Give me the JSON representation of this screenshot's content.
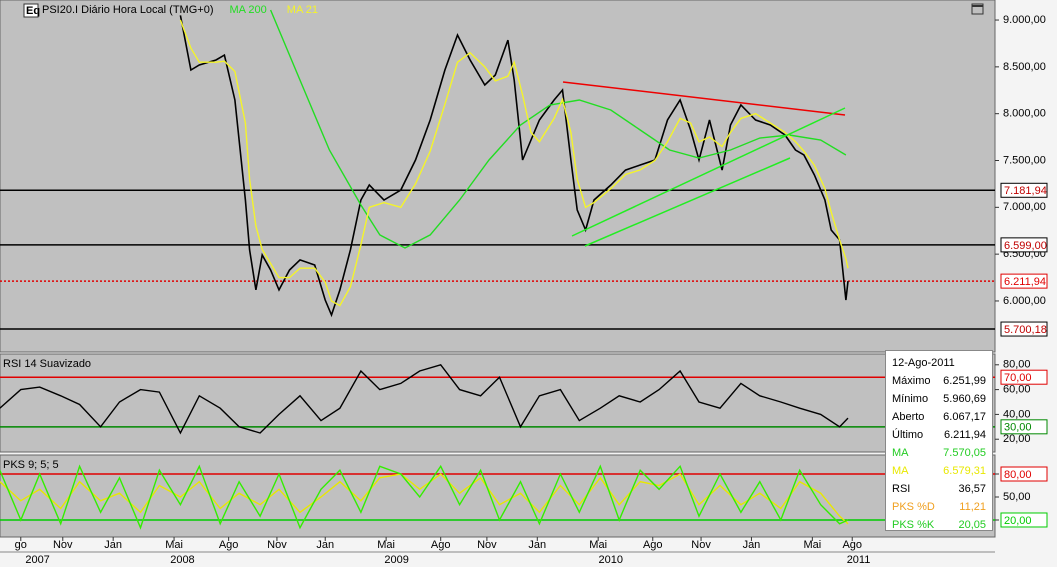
{
  "toolbar": {
    "icon": "Eq"
  },
  "chart_data": [
    {
      "type": "line",
      "title": "PSI20.I Diário Hora Local (TMG+0)",
      "xlim": [
        2007.471,
        2012.21
      ],
      "ylim": [
        5455,
        9214
      ],
      "yticks": [
        {
          "value": 9000,
          "label": "9.000,00"
        },
        {
          "value": 8500,
          "label": "8.500,00"
        },
        {
          "value": 8000,
          "label": "8.000,00"
        },
        {
          "value": 7500,
          "label": "7.500,00"
        },
        {
          "value": 7000,
          "label": "7.000,00"
        },
        {
          "value": 6500,
          "label": "6.500,00"
        },
        {
          "value": 6000,
          "label": "6.000,00"
        }
      ],
      "levels": [
        {
          "value": 7181.94,
          "label": "7.181,94",
          "color": "#000000",
          "style": "solid"
        },
        {
          "value": 6599.0,
          "label": "6.599,00",
          "color": "#000000",
          "style": "solid"
        },
        {
          "value": 6211.94,
          "label": "6.211,94",
          "color": "#e00000",
          "style": "dotted"
        },
        {
          "value": 5700.18,
          "label": "5.700,18",
          "color": "#000000",
          "style": "solid"
        }
      ],
      "x": [
        2008.33,
        2008.38,
        2008.42,
        2008.5,
        2008.54,
        2008.59,
        2008.64,
        2008.66,
        2008.69,
        2008.72,
        2008.76,
        2008.8,
        2008.85,
        2008.9,
        2008.97,
        2009.02,
        2009.05,
        2009.09,
        2009.14,
        2009.19,
        2009.23,
        2009.3,
        2009.38,
        2009.45,
        2009.52,
        2009.59,
        2009.65,
        2009.71,
        2009.78,
        2009.83,
        2009.89,
        2009.92,
        2009.96,
        2010.0,
        2010.04,
        2010.11,
        2010.15,
        2010.19,
        2010.22,
        2010.26,
        2010.3,
        2010.38,
        2010.45,
        2010.52,
        2010.59,
        2010.65,
        2010.71,
        2010.76,
        2010.8,
        2010.85,
        2010.91,
        2010.95,
        2011.0,
        2011.07,
        2011.14,
        2011.21,
        2011.26,
        2011.3,
        2011.35,
        2011.4,
        2011.43,
        2011.47,
        2011.5,
        2011.51
      ],
      "series": [
        {
          "color": "#000000",
          "values": [
            9050,
            8466,
            8520,
            8573,
            8626,
            8146,
            7078,
            6545,
            6118,
            6491,
            6331,
            6118,
            6331,
            6438,
            6384,
            6010,
            5850,
            6118,
            6545,
            7078,
            7238,
            7078,
            7185,
            7505,
            7932,
            8466,
            8840,
            8573,
            8306,
            8413,
            8786,
            8359,
            7505,
            7719,
            7932,
            8146,
            8253,
            7505,
            6972,
            6758,
            7078,
            7238,
            7398,
            7452,
            7505,
            7932,
            8146,
            7826,
            7505,
            7932,
            7398,
            7879,
            8093,
            7932,
            7879,
            7772,
            7612,
            7559,
            7345,
            7078,
            6758,
            6652,
            6010,
            6212
          ]
        },
        {
          "name": "MA 200",
          "color": "#22dd22",
          "x": [
            2008.76,
            2008.9,
            2009.04,
            2009.19,
            2009.28,
            2009.4,
            2009.52,
            2009.66,
            2009.8,
            2009.95,
            2010.09,
            2010.23,
            2010.38,
            2010.52,
            2010.66,
            2010.8,
            2010.95,
            2011.09,
            2011.23,
            2011.38,
            2011.5
          ],
          "values": [
            9107,
            8359,
            7612,
            7025,
            6705,
            6566,
            6705,
            7078,
            7505,
            7879,
            8093,
            8146,
            8039,
            7826,
            7612,
            7527,
            7612,
            7740,
            7772,
            7719,
            7559
          ]
        },
        {
          "name": "MA 21",
          "color": "#f4f42a",
          "values": [
            9000,
            8700,
            8550,
            8550,
            8560,
            8450,
            7900,
            7300,
            6800,
            6550,
            6400,
            6250,
            6250,
            6350,
            6350,
            6200,
            6000,
            5950,
            6150,
            6600,
            7000,
            7050,
            7000,
            7250,
            7600,
            8100,
            8550,
            8650,
            8500,
            8350,
            8400,
            8550,
            8200,
            7800,
            7700,
            7950,
            8150,
            7800,
            7300,
            7000,
            7050,
            7200,
            7350,
            7400,
            7500,
            7700,
            7950,
            7900,
            7700,
            7750,
            7650,
            7800,
            7950,
            8000,
            7900,
            7800,
            7700,
            7600,
            7450,
            7200,
            6950,
            6650,
            6450,
            6350
          ]
        }
      ]
    },
    {
      "type": "line",
      "title": "RSI 14 Suavizado",
      "xlim": [
        2007.471,
        2012.21
      ],
      "ylim": [
        9.7,
        88.7
      ],
      "yticks": [
        {
          "value": 80,
          "label": "80,00"
        },
        {
          "value": 60,
          "label": "60,00"
        },
        {
          "value": 40,
          "label": "40,00"
        },
        {
          "value": 20,
          "label": "20,00"
        }
      ],
      "levels": [
        {
          "value": 70,
          "label": "70,00",
          "color": "#e00000",
          "style": "solid"
        },
        {
          "value": 30,
          "label": "30,00",
          "color": "#008800",
          "style": "solid"
        }
      ],
      "x": [
        2007.47,
        2007.57,
        2007.66,
        2007.76,
        2007.85,
        2007.95,
        2008.04,
        2008.14,
        2008.23,
        2008.33,
        2008.42,
        2008.52,
        2008.61,
        2008.71,
        2008.8,
        2008.9,
        2009.0,
        2009.09,
        2009.19,
        2009.28,
        2009.38,
        2009.47,
        2009.57,
        2009.66,
        2009.76,
        2009.85,
        2009.95,
        2010.04,
        2010.14,
        2010.23,
        2010.33,
        2010.42,
        2010.52,
        2010.61,
        2010.71,
        2010.8,
        2010.9,
        2011.0,
        2011.09,
        2011.19,
        2011.28,
        2011.38,
        2011.47,
        2011.51
      ],
      "series": [
        {
          "color": "#000000",
          "values": [
            45,
            60,
            62,
            55,
            48,
            30,
            50,
            60,
            58,
            25,
            55,
            45,
            30,
            25,
            40,
            55,
            35,
            45,
            75,
            60,
            65,
            75,
            80,
            60,
            55,
            70,
            30,
            55,
            60,
            35,
            45,
            55,
            50,
            60,
            75,
            50,
            45,
            65,
            55,
            50,
            45,
            40,
            30,
            37
          ]
        }
      ]
    },
    {
      "type": "line",
      "title": "PKS 9; 5; 5",
      "xlim": [
        2007.471,
        2012.21
      ],
      "ylim": [
        -2.2,
        104.8
      ],
      "yticks": [
        {
          "value": 80,
          "label": "80,00"
        },
        {
          "value": 50,
          "label": "50,00"
        },
        {
          "value": 20,
          "label": "20,00"
        }
      ],
      "levels": [
        {
          "value": 80,
          "label": "80,00",
          "color": "#e00000",
          "style": "solid"
        },
        {
          "value": 20,
          "label": "20,00",
          "color": "#00cc00",
          "style": "solid"
        }
      ],
      "x": [
        2007.47,
        2007.57,
        2007.66,
        2007.76,
        2007.85,
        2007.95,
        2008.04,
        2008.14,
        2008.23,
        2008.33,
        2008.42,
        2008.52,
        2008.61,
        2008.71,
        2008.8,
        2008.9,
        2009.0,
        2009.09,
        2009.19,
        2009.28,
        2009.38,
        2009.47,
        2009.57,
        2009.66,
        2009.76,
        2009.85,
        2009.95,
        2010.04,
        2010.14,
        2010.23,
        2010.33,
        2010.42,
        2010.52,
        2010.61,
        2010.71,
        2010.8,
        2010.9,
        2011.0,
        2011.09,
        2011.19,
        2011.28,
        2011.38,
        2011.47,
        2011.51
      ],
      "series": [
        {
          "color": "#e8e800",
          "values": [
            70,
            45,
            60,
            35,
            70,
            45,
            55,
            30,
            65,
            50,
            70,
            35,
            55,
            40,
            60,
            30,
            50,
            70,
            45,
            75,
            80,
            60,
            80,
            55,
            75,
            40,
            55,
            30,
            65,
            40,
            75,
            40,
            70,
            65,
            80,
            40,
            65,
            40,
            55,
            35,
            70,
            55,
            25,
            15
          ]
        },
        {
          "color": "#33ee00",
          "values": [
            85,
            20,
            80,
            15,
            90,
            30,
            75,
            10,
            85,
            40,
            90,
            15,
            70,
            25,
            80,
            10,
            60,
            85,
            30,
            90,
            80,
            50,
            90,
            40,
            85,
            20,
            70,
            15,
            80,
            30,
            90,
            20,
            85,
            60,
            90,
            25,
            80,
            30,
            70,
            20,
            85,
            40,
            15,
            20
          ]
        }
      ],
      "xticks": [
        {
          "value": 2007.57,
          "label": "go"
        },
        {
          "value": 2007.77,
          "label": "Nov"
        },
        {
          "value": 2008.01,
          "label": "Jan"
        },
        {
          "value": 2008.3,
          "label": "Mai"
        },
        {
          "value": 2008.56,
          "label": "Ago"
        },
        {
          "value": 2008.79,
          "label": "Nov"
        },
        {
          "value": 2009.02,
          "label": "Jan"
        },
        {
          "value": 2009.31,
          "label": "Mai"
        },
        {
          "value": 2009.57,
          "label": "Ago"
        },
        {
          "value": 2009.79,
          "label": "Nov"
        },
        {
          "value": 2010.03,
          "label": "Jan"
        },
        {
          "value": 2010.32,
          "label": "Mai"
        },
        {
          "value": 2010.58,
          "label": "Ago"
        },
        {
          "value": 2010.81,
          "label": "Nov"
        },
        {
          "value": 2011.05,
          "label": "Jan"
        },
        {
          "value": 2011.34,
          "label": "Mai"
        },
        {
          "value": 2011.53,
          "label": "Ago"
        }
      ],
      "year_ticks": [
        {
          "value": 2007.65,
          "label": "2007"
        },
        {
          "value": 2008.34,
          "label": "2008"
        },
        {
          "value": 2009.36,
          "label": "2009"
        },
        {
          "value": 2010.38,
          "label": "2010"
        },
        {
          "value": 2011.56,
          "label": "2011"
        }
      ]
    }
  ],
  "info_box": {
    "date": "12-Ago-2011",
    "rows": [
      {
        "label": "Máximo",
        "value": "6.251,99",
        "color": "#000000"
      },
      {
        "label": "Mínimo",
        "value": "5.960,69",
        "color": "#000000"
      },
      {
        "label": "Aberto",
        "value": "6.067,17",
        "color": "#000000"
      },
      {
        "label": "Último",
        "value": "6.211,94",
        "color": "#000000"
      },
      {
        "label": "MA",
        "value": "7.570,05",
        "color": "#22cc22"
      },
      {
        "label": "MA",
        "value": "6.579,31",
        "color": "#e8e800"
      },
      {
        "label": "RSI",
        "value": "36,57",
        "color": "#000000"
      },
      {
        "label": "PKS %D",
        "value": "11,21",
        "color": "#f0a020"
      },
      {
        "label": "PKS %K",
        "value": "20,05",
        "color": "#22cc22"
      }
    ]
  }
}
